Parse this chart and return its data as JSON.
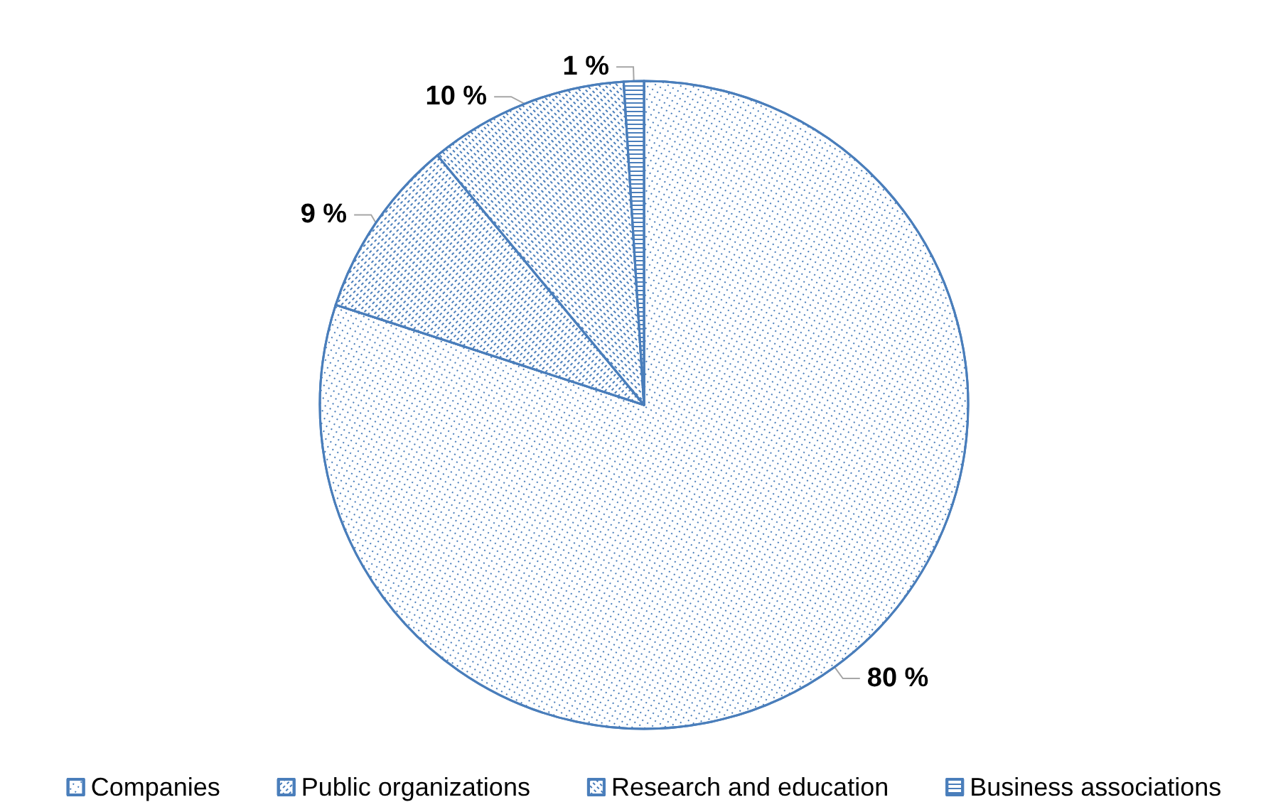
{
  "chart_data": {
    "type": "pie",
    "categories": [
      "Companies",
      "Public organizations",
      "Research and education",
      "Business associations"
    ],
    "values": [
      80,
      9,
      10,
      1
    ],
    "value_labels": [
      "80 %",
      "9 %",
      "10 %",
      "1 %"
    ],
    "colors": [
      "#4a7ebb",
      "#4a7ebb",
      "#4a7ebb",
      "#4a7ebb"
    ],
    "legend": "bottom"
  }
}
